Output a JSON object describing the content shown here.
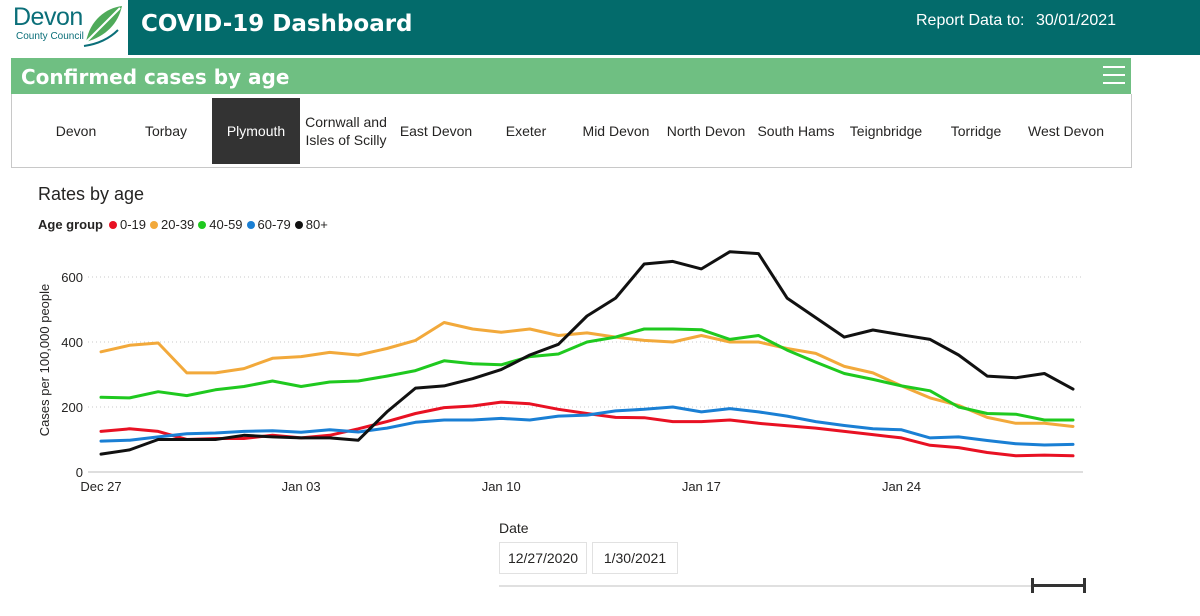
{
  "header": {
    "logo_name": "Devon",
    "logo_sub": "County Council",
    "title": "COVID-19 Dashboard",
    "report_label": "Report Data to:",
    "report_date": "30/01/2021",
    "bg_color": "#036b6b"
  },
  "section": {
    "title": "Confirmed cases by age",
    "bar_color": "#6fbf82"
  },
  "tabs": [
    {
      "label": "Devon",
      "selected": false
    },
    {
      "label": "Torbay",
      "selected": false
    },
    {
      "label": "Plymouth",
      "selected": true
    },
    {
      "label": "Cornwall and Isles of Scilly",
      "selected": false
    },
    {
      "label": "East Devon",
      "selected": false
    },
    {
      "label": "Exeter",
      "selected": false
    },
    {
      "label": "Mid Devon",
      "selected": false
    },
    {
      "label": "North Devon",
      "selected": false
    },
    {
      "label": "South Hams",
      "selected": false
    },
    {
      "label": "Teignbridge",
      "selected": false
    },
    {
      "label": "Torridge",
      "selected": false
    },
    {
      "label": "West Devon",
      "selected": false
    }
  ],
  "chart": {
    "title": "Rates by age",
    "legend_title": "Age group"
  },
  "chart_data": {
    "type": "line",
    "title": "Rates by age",
    "xlabel": "",
    "ylabel": "Cases per 100,000 people",
    "ylim": [
      0,
      700
    ],
    "yticks": [
      0,
      200,
      400,
      600
    ],
    "grid": "dotted horizontal",
    "legend_title": "Age group",
    "legend_position": "top-left",
    "x_start": "2020-12-27",
    "x": [
      "Dec 27",
      "Dec 28",
      "Dec 29",
      "Dec 30",
      "Dec 31",
      "Jan 01",
      "Jan 02",
      "Jan 03",
      "Jan 04",
      "Jan 05",
      "Jan 06",
      "Jan 07",
      "Jan 08",
      "Jan 09",
      "Jan 10",
      "Jan 11",
      "Jan 12",
      "Jan 13",
      "Jan 14",
      "Jan 15",
      "Jan 16",
      "Jan 17",
      "Jan 18",
      "Jan 19",
      "Jan 20",
      "Jan 21",
      "Jan 22",
      "Jan 23",
      "Jan 24",
      "Jan 25",
      "Jan 26",
      "Jan 27",
      "Jan 28",
      "Jan 29",
      "Jan 30"
    ],
    "x_tick_labels": [
      "Dec 27",
      "Jan 03",
      "Jan 10",
      "Jan 17",
      "Jan 24"
    ],
    "series": [
      {
        "name": "0-19",
        "color": "#e81123",
        "values": [
          125,
          133,
          125,
          100,
          103,
          103,
          113,
          105,
          113,
          133,
          155,
          180,
          198,
          203,
          215,
          210,
          193,
          180,
          168,
          167,
          155,
          155,
          160,
          150,
          142,
          135,
          125,
          115,
          105,
          82,
          75,
          60,
          50,
          52,
          50
        ]
      },
      {
        "name": "20-39",
        "color": "#f2a93b",
        "values": [
          370,
          390,
          397,
          305,
          305,
          318,
          350,
          355,
          368,
          360,
          380,
          405,
          460,
          440,
          430,
          440,
          420,
          428,
          415,
          405,
          400,
          420,
          400,
          400,
          380,
          365,
          325,
          305,
          265,
          228,
          205,
          168,
          150,
          150,
          140
        ]
      },
      {
        "name": "40-59",
        "color": "#1fc91f",
        "values": [
          230,
          228,
          247,
          235,
          253,
          263,
          280,
          263,
          277,
          280,
          295,
          312,
          342,
          333,
          330,
          355,
          363,
          400,
          415,
          440,
          440,
          438,
          408,
          420,
          375,
          338,
          303,
          285,
          265,
          250,
          200,
          180,
          178,
          160,
          160
        ]
      },
      {
        "name": "60-79",
        "color": "#1a7fd4",
        "values": [
          95,
          98,
          108,
          118,
          120,
          125,
          127,
          122,
          130,
          123,
          135,
          153,
          160,
          160,
          165,
          160,
          172,
          175,
          188,
          193,
          200,
          185,
          195,
          185,
          172,
          155,
          143,
          133,
          130,
          105,
          108,
          97,
          87,
          83,
          85
        ]
      },
      {
        "name": "80+",
        "color": "#111111",
        "values": [
          55,
          68,
          100,
          100,
          100,
          113,
          108,
          105,
          105,
          98,
          185,
          258,
          265,
          287,
          315,
          360,
          393,
          480,
          535,
          640,
          648,
          625,
          678,
          672,
          535,
          475,
          415,
          437,
          422,
          408,
          360,
          295,
          290,
          303,
          255
        ]
      }
    ]
  },
  "date_filter": {
    "label": "Date",
    "start": "12/27/2020",
    "end": "1/30/2021"
  }
}
